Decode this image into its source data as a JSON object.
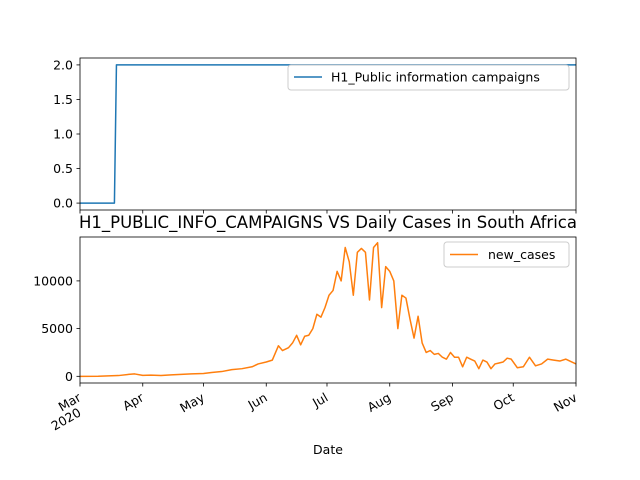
{
  "chart_data": [
    {
      "type": "line",
      "title": "",
      "xlabel": "",
      "ylabel": "",
      "x_range": [
        "2020-03-01",
        "2020-11-01"
      ],
      "ylim": [
        -0.1,
        2.1
      ],
      "yticks": [
        "0.0",
        "0.5",
        "1.0",
        "1.5",
        "2.0"
      ],
      "grid": false,
      "legend_position": "upper-right",
      "series": [
        {
          "name": "H1_Public information campaigns",
          "color": "#1f77b4",
          "x": [
            "2020-03-01",
            "2020-03-18",
            "2020-03-19",
            "2020-11-01"
          ],
          "values": [
            0,
            0,
            2,
            2
          ]
        }
      ]
    },
    {
      "type": "line",
      "title": "H1_PUBLIC_INFO_CAMPAIGNS VS Daily Cases in South Africa",
      "xlabel": "Date",
      "ylabel": "",
      "x_range": [
        "2020-03-01",
        "2020-11-01"
      ],
      "ylim": [
        -700,
        14600
      ],
      "yticks": [
        "0",
        "5000",
        "10000"
      ],
      "xticks": [
        {
          "date": "2020-03-01",
          "label": "Mar",
          "sublabel": "2020"
        },
        {
          "date": "2020-04-01",
          "label": "Apr"
        },
        {
          "date": "2020-05-01",
          "label": "May"
        },
        {
          "date": "2020-06-01",
          "label": "Jun"
        },
        {
          "date": "2020-07-01",
          "label": "Jul"
        },
        {
          "date": "2020-08-01",
          "label": "Aug"
        },
        {
          "date": "2020-09-01",
          "label": "Sep"
        },
        {
          "date": "2020-10-01",
          "label": "Oct"
        },
        {
          "date": "2020-11-01",
          "label": "Nov"
        }
      ],
      "grid": false,
      "legend_position": "upper-right",
      "series": [
        {
          "name": "new_cases",
          "color": "#ff7f0e",
          "x": [
            "2020-03-01",
            "2020-03-10",
            "2020-03-20",
            "2020-03-25",
            "2020-03-28",
            "2020-04-01",
            "2020-04-05",
            "2020-04-10",
            "2020-04-15",
            "2020-04-20",
            "2020-04-25",
            "2020-05-01",
            "2020-05-05",
            "2020-05-10",
            "2020-05-15",
            "2020-05-20",
            "2020-05-25",
            "2020-05-28",
            "2020-06-01",
            "2020-06-04",
            "2020-06-07",
            "2020-06-09",
            "2020-06-12",
            "2020-06-14",
            "2020-06-16",
            "2020-06-18",
            "2020-06-20",
            "2020-06-22",
            "2020-06-24",
            "2020-06-26",
            "2020-06-28",
            "2020-06-30",
            "2020-07-02",
            "2020-07-04",
            "2020-07-06",
            "2020-07-08",
            "2020-07-10",
            "2020-07-12",
            "2020-07-14",
            "2020-07-16",
            "2020-07-18",
            "2020-07-20",
            "2020-07-22",
            "2020-07-24",
            "2020-07-26",
            "2020-07-28",
            "2020-07-30",
            "2020-08-01",
            "2020-08-03",
            "2020-08-05",
            "2020-08-07",
            "2020-08-09",
            "2020-08-11",
            "2020-08-13",
            "2020-08-15",
            "2020-08-17",
            "2020-08-19",
            "2020-08-21",
            "2020-08-23",
            "2020-08-25",
            "2020-08-27",
            "2020-08-29",
            "2020-08-31",
            "2020-09-02",
            "2020-09-04",
            "2020-09-06",
            "2020-09-08",
            "2020-09-10",
            "2020-09-12",
            "2020-09-14",
            "2020-09-16",
            "2020-09-18",
            "2020-09-20",
            "2020-09-22",
            "2020-09-24",
            "2020-09-26",
            "2020-09-28",
            "2020-09-30",
            "2020-10-03",
            "2020-10-06",
            "2020-10-09",
            "2020-10-12",
            "2020-10-15",
            "2020-10-18",
            "2020-10-21",
            "2020-10-24",
            "2020-10-27",
            "2020-10-30",
            "2020-11-01"
          ],
          "values": [
            0,
            10,
            80,
            200,
            250,
            100,
            120,
            80,
            150,
            200,
            250,
            300,
            400,
            500,
            700,
            800,
            1000,
            1300,
            1500,
            1700,
            3200,
            2700,
            3000,
            3500,
            4300,
            3300,
            4200,
            4300,
            5000,
            6500,
            6200,
            7200,
            8500,
            9000,
            11000,
            10000,
            13500,
            12000,
            8500,
            13000,
            13400,
            13000,
            8000,
            13500,
            14000,
            7200,
            11500,
            11000,
            10000,
            5000,
            8500,
            8200,
            6000,
            4000,
            6300,
            3500,
            2500,
            2700,
            2300,
            2400,
            2000,
            1800,
            2500,
            2000,
            2000,
            1000,
            2000,
            1800,
            1600,
            800,
            1700,
            1500,
            800,
            1300,
            1400,
            1500,
            1900,
            1800,
            900,
            1000,
            2000,
            1100,
            1300,
            1800,
            1700,
            1600,
            1800,
            1500,
            1300
          ]
        }
      ]
    }
  ]
}
